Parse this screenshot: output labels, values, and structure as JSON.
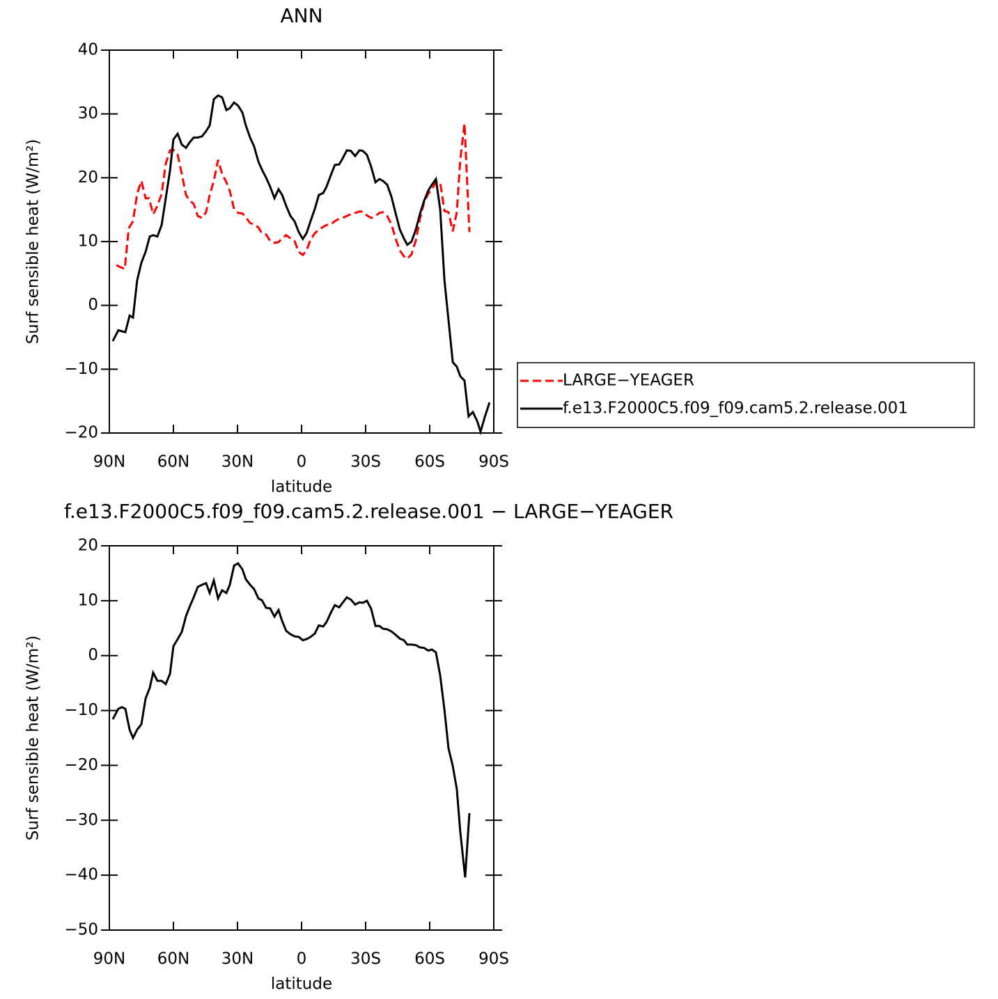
{
  "chart_data": [
    {
      "type": "line",
      "title": "ANN",
      "xlabel": "latitude",
      "ylabel": "Surf sensible heat (W/m²)",
      "xlim": [
        90,
        -90
      ],
      "xticks": [
        {
          "value": 90,
          "label": "90N"
        },
        {
          "value": 60,
          "label": "60N"
        },
        {
          "value": 30,
          "label": "30N"
        },
        0,
        {
          "value": -30,
          "label": "30S"
        },
        {
          "value": -60,
          "label": "60S"
        },
        {
          "value": -90,
          "label": "90S"
        }
      ],
      "ylim": [
        -20,
        40
      ],
      "yticks": [
        {
          "value": -20,
          "label": "−20"
        },
        {
          "value": -10,
          "label": "−10"
        },
        0,
        10,
        20,
        30,
        40
      ],
      "legend": "right",
      "series": [
        {
          "name": "LARGE−YEAGER",
          "color": "#ff0000",
          "style": "dashed",
          "x": [
            86.7,
            84.8,
            82.8,
            80.9,
            78.9,
            77.0,
            75.0,
            73.0,
            71.4,
            69.5,
            67.5,
            65.5,
            63.6,
            61.6,
            60.0,
            58.0,
            56.1,
            54.1,
            52.5,
            50.5,
            48.6,
            46.6,
            44.7,
            43.0,
            41.1,
            39.1,
            37.2,
            35.2,
            33.6,
            31.6,
            29.7,
            27.7,
            26.1,
            24.1,
            22.2,
            20.2,
            18.6,
            16.6,
            14.7,
            12.7,
            10.8,
            9.1,
            7.2,
            5.2,
            3.3,
            1.3,
            -0.6,
            -2.3,
            -4.2,
            -6.2,
            -8.1,
            -10.1,
            -11.7,
            -13.7,
            -15.6,
            -17.6,
            -19.2,
            -21.2,
            -23.1,
            -25.1,
            -27.1,
            -28.7,
            -30.6,
            -32.6,
            -34.6,
            -36.5,
            -38.1,
            -40.1,
            -42.1,
            -44.0,
            -46.0,
            -47.9,
            -49.5,
            -51.5,
            -53.5,
            -55.4,
            -57.4,
            -59.3,
            -61.0,
            -62.9,
            -64.9,
            -66.9,
            -68.8,
            -70.8,
            -72.7,
            -74.3,
            -76.3,
            -78.6
          ],
          "values": [
            6.3,
            6.0,
            5.7,
            12.1,
            13.2,
            17.5,
            19.5,
            16.8,
            16.8,
            14.3,
            15.6,
            17.5,
            22.2,
            24.3,
            24.4,
            23.6,
            20.6,
            17.3,
            16.5,
            15.9,
            14.0,
            13.7,
            14.6,
            17.3,
            19.5,
            22.8,
            20.6,
            19.3,
            17.9,
            15.1,
            14.5,
            14.4,
            13.8,
            12.9,
            12.7,
            12.2,
            11.3,
            11.1,
            10.1,
            9.8,
            9.9,
            10.5,
            11.0,
            10.5,
            10.1,
            8.4,
            7.9,
            8.6,
            10.3,
            11.3,
            11.9,
            12.3,
            12.6,
            12.7,
            13.2,
            13.6,
            13.7,
            14.0,
            14.3,
            14.5,
            14.7,
            14.7,
            14.1,
            13.7,
            14.0,
            14.5,
            14.6,
            14.0,
            12.7,
            10.5,
            8.6,
            7.7,
            7.3,
            8.0,
            10.2,
            13.5,
            16.2,
            17.5,
            18.2,
            19.3,
            19.3,
            14.8,
            14.6,
            11.6,
            14.6,
            22.8,
            28.5,
            11.5
          ]
        },
        {
          "name": "f.e13.F2000C5.f09_f09.cam5.2.release.001",
          "color": "#000000",
          "style": "solid",
          "x": [
            88.4,
            85.8,
            82.5,
            80.5,
            78.9,
            77.0,
            75.0,
            73.0,
            71.1,
            69.5,
            67.5,
            65.5,
            63.6,
            61.6,
            60.0,
            58.0,
            56.1,
            54.1,
            52.5,
            50.5,
            48.6,
            46.6,
            44.7,
            43.0,
            41.1,
            39.1,
            37.2,
            35.2,
            33.6,
            31.6,
            29.7,
            27.7,
            26.1,
            24.1,
            22.2,
            20.2,
            18.6,
            16.6,
            14.7,
            12.7,
            10.8,
            9.1,
            7.2,
            5.2,
            3.3,
            1.3,
            -0.6,
            -2.3,
            -4.2,
            -6.2,
            -8.1,
            -10.1,
            -11.7,
            -13.7,
            -15.6,
            -17.6,
            -19.2,
            -21.2,
            -23.1,
            -25.1,
            -27.1,
            -28.7,
            -30.6,
            -32.6,
            -34.6,
            -36.5,
            -38.1,
            -40.1,
            -42.1,
            -44.0,
            -46.0,
            -47.9,
            -49.5,
            -51.5,
            -53.5,
            -55.4,
            -57.4,
            -59.3,
            -61.0,
            -62.9,
            -64.9,
            -66.9,
            -68.8,
            -70.8,
            -72.7,
            -74.3,
            -76.3,
            -78.2,
            -80.2,
            -82.2,
            -83.8,
            -85.7,
            -88.0
          ],
          "values": [
            -5.6,
            -3.9,
            -4.2,
            -1.6,
            -1.9,
            3.9,
            6.7,
            8.4,
            10.8,
            11.0,
            10.8,
            12.6,
            16.8,
            21.1,
            26.0,
            26.9,
            25.2,
            24.7,
            25.5,
            26.3,
            26.3,
            26.5,
            27.3,
            28.2,
            32.3,
            32.9,
            32.6,
            30.6,
            30.9,
            31.8,
            31.3,
            30.2,
            28.2,
            26.3,
            24.9,
            22.5,
            21.3,
            20.0,
            18.6,
            16.8,
            18.2,
            17.3,
            15.6,
            14.0,
            13.2,
            11.5,
            10.4,
            11.3,
            13.2,
            15.1,
            17.3,
            17.6,
            18.6,
            20.4,
            22.0,
            22.1,
            23.0,
            24.3,
            24.2,
            23.4,
            24.3,
            24.2,
            23.6,
            21.7,
            19.3,
            19.8,
            19.5,
            18.9,
            17.0,
            14.5,
            11.9,
            10.5,
            9.5,
            10.0,
            11.9,
            14.3,
            16.4,
            18.0,
            18.9,
            19.8,
            15.1,
            3.9,
            -2.3,
            -8.9,
            -9.6,
            -11.1,
            -11.8,
            -17.4,
            -16.7,
            -18.1,
            -19.8,
            -17.6,
            -15.2
          ]
        }
      ]
    },
    {
      "type": "line",
      "title": "f.e13.F2000C5.f09_f09.cam5.2.release.001 − LARGE−YEAGER",
      "xlabel": "latitude",
      "ylabel": "Surf sensible heat (W/m²)",
      "xlim": [
        90,
        -90
      ],
      "xticks": [
        {
          "value": 90,
          "label": "90N"
        },
        {
          "value": 60,
          "label": "60N"
        },
        {
          "value": 30,
          "label": "30N"
        },
        0,
        {
          "value": -30,
          "label": "30S"
        },
        {
          "value": -60,
          "label": "60S"
        },
        {
          "value": -90,
          "label": "90S"
        }
      ],
      "ylim": [
        -50,
        20
      ],
      "yticks": [
        {
          "value": -50,
          "label": "−50"
        },
        {
          "value": -40,
          "label": "−40"
        },
        {
          "value": -30,
          "label": "−30"
        },
        {
          "value": -20,
          "label": "−20"
        },
        {
          "value": -10,
          "label": "−10"
        },
        0,
        10,
        20
      ],
      "color": "#000000",
      "x": [
        88.4,
        85.8,
        84.1,
        82.5,
        80.5,
        78.9,
        77.0,
        75.0,
        73.0,
        71.1,
        69.5,
        67.5,
        65.5,
        63.6,
        61.6,
        60.0,
        58.0,
        56.1,
        54.1,
        52.5,
        50.5,
        48.6,
        46.6,
        44.7,
        43.0,
        41.1,
        39.1,
        37.2,
        35.2,
        33.6,
        31.6,
        29.7,
        27.7,
        26.1,
        24.1,
        22.2,
        20.2,
        18.6,
        16.6,
        14.7,
        12.7,
        10.8,
        9.1,
        7.2,
        5.2,
        3.3,
        1.3,
        -0.6,
        -2.3,
        -4.2,
        -6.2,
        -8.1,
        -10.1,
        -11.7,
        -13.7,
        -15.6,
        -17.6,
        -19.2,
        -21.2,
        -23.1,
        -25.1,
        -27.1,
        -28.7,
        -30.6,
        -32.6,
        -34.6,
        -36.5,
        -38.1,
        -40.1,
        -42.1,
        -44.0,
        -46.0,
        -47.9,
        -49.5,
        -51.5,
        -53.5,
        -55.4,
        -57.4,
        -59.3,
        -61.0,
        -62.9,
        -64.9,
        -66.9,
        -68.8,
        -70.8,
        -72.7,
        -74.3,
        -76.6,
        -78.6
      ],
      "values": [
        -11.6,
        -9.7,
        -9.4,
        -9.7,
        -13.5,
        -15.0,
        -13.5,
        -12.5,
        -7.8,
        -5.9,
        -3.1,
        -4.6,
        -4.6,
        -5.2,
        -3.3,
        1.7,
        3.0,
        4.3,
        7.2,
        8.8,
        10.6,
        12.5,
        12.9,
        13.2,
        11.4,
        13.7,
        10.4,
        11.9,
        11.4,
        12.9,
        16.4,
        16.8,
        15.7,
        13.9,
        12.9,
        12.1,
        10.4,
        10.1,
        8.7,
        8.6,
        7.1,
        8.3,
        6.3,
        4.5,
        3.9,
        3.5,
        3.4,
        2.8,
        3.0,
        3.4,
        4.0,
        5.5,
        5.3,
        6.1,
        7.8,
        9.2,
        8.8,
        9.6,
        10.6,
        10.2,
        9.3,
        9.7,
        9.6,
        10.0,
        8.5,
        5.4,
        5.4,
        4.9,
        4.8,
        4.4,
        3.8,
        3.1,
        2.8,
        2.0,
        2.0,
        1.9,
        1.5,
        1.4,
        0.9,
        1.1,
        0.6,
        -3.6,
        -9.9,
        -16.9,
        -20.1,
        -24.3,
        -32.1,
        -40.4,
        -28.7
      ]
    }
  ]
}
